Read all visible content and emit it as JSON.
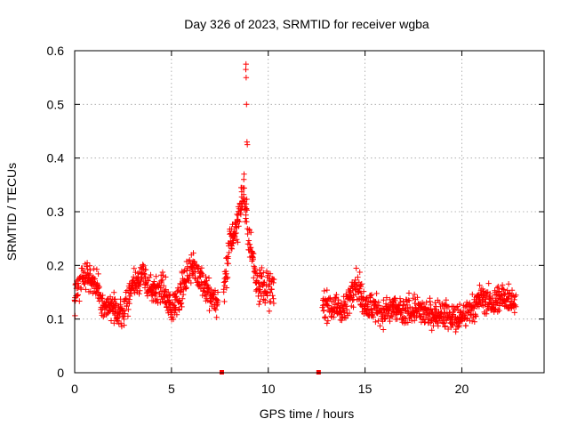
{
  "chart_data": {
    "type": "scatter",
    "title": "Day 326 of 2023, SRMTID for receiver wgba",
    "xlabel": "GPS time / hours",
    "ylabel": "SRMTID / TECUs",
    "xlim": [
      0,
      24.25
    ],
    "ylim": [
      0,
      0.6
    ],
    "xticks": [
      0,
      5,
      10,
      15,
      20
    ],
    "yticks": [
      0,
      0.1,
      0.2,
      0.3,
      0.4,
      0.5,
      0.6
    ],
    "xtick_labels": [
      "0",
      "5",
      "10",
      "15",
      "20"
    ],
    "ytick_labels": [
      "0",
      "0.1",
      "0.2",
      "0.3",
      "0.4",
      "0.5",
      "0.6"
    ],
    "grid": true,
    "marker": "plus",
    "color": "#ff0000",
    "series": [
      {
        "name": "SRMTID",
        "segments": [
          {
            "x_start": 0.0,
            "x_end": 7.4,
            "x_step": 0.02,
            "values_profile": [
              [
                0.0,
                0.14
              ],
              [
                0.5,
                0.19
              ],
              [
                1.0,
                0.17
              ],
              [
                1.5,
                0.12
              ],
              [
                2.0,
                0.12
              ],
              [
                2.5,
                0.11
              ],
              [
                3.0,
                0.17
              ],
              [
                3.5,
                0.18
              ],
              [
                4.0,
                0.15
              ],
              [
                4.5,
                0.16
              ],
              [
                5.0,
                0.12
              ],
              [
                5.5,
                0.15
              ],
              [
                6.0,
                0.2
              ],
              [
                6.5,
                0.18
              ],
              [
                7.0,
                0.14
              ],
              [
                7.4,
                0.13
              ]
            ],
            "spread": 0.05
          },
          {
            "x_start": 7.7,
            "x_end": 10.3,
            "x_step": 0.02,
            "values_profile": [
              [
                7.7,
                0.15
              ],
              [
                8.0,
                0.24
              ],
              [
                8.4,
                0.28
              ],
              [
                8.7,
                0.34
              ],
              [
                9.0,
                0.25
              ],
              [
                9.4,
                0.17
              ],
              [
                9.8,
                0.16
              ],
              [
                10.3,
                0.15
              ]
            ],
            "spread": 0.06
          },
          {
            "x_start": 12.8,
            "x_end": 22.8,
            "x_step": 0.02,
            "values_profile": [
              [
                12.8,
                0.13
              ],
              [
                13.5,
                0.12
              ],
              [
                14.0,
                0.12
              ],
              [
                14.5,
                0.17
              ],
              [
                15.0,
                0.13
              ],
              [
                15.5,
                0.12
              ],
              [
                16.0,
                0.11
              ],
              [
                16.5,
                0.12
              ],
              [
                17.0,
                0.11
              ],
              [
                17.5,
                0.12
              ],
              [
                18.0,
                0.11
              ],
              [
                18.5,
                0.11
              ],
              [
                19.0,
                0.11
              ],
              [
                19.5,
                0.1
              ],
              [
                20.0,
                0.1
              ],
              [
                20.5,
                0.12
              ],
              [
                21.0,
                0.14
              ],
              [
                21.5,
                0.13
              ],
              [
                22.0,
                0.14
              ],
              [
                22.5,
                0.14
              ],
              [
                22.8,
                0.13
              ]
            ],
            "spread": 0.045
          }
        ],
        "spikes": [
          {
            "x": 8.85,
            "y": 0.575
          },
          {
            "x": 8.84,
            "y": 0.565
          },
          {
            "x": 8.86,
            "y": 0.55
          },
          {
            "x": 8.88,
            "y": 0.5
          },
          {
            "x": 8.9,
            "y": 0.43
          },
          {
            "x": 8.92,
            "y": 0.425
          },
          {
            "x": 8.75,
            "y": 0.37
          },
          {
            "x": 8.6,
            "y": 0.345
          }
        ],
        "zero_markers": [
          {
            "x": 7.6,
            "y": 0.0
          },
          {
            "x": 12.6,
            "y": 0.0
          }
        ]
      }
    ]
  }
}
